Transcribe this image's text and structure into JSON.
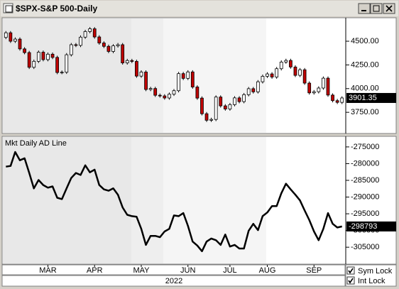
{
  "chart_data": [
    {
      "type": "candlestick",
      "title": "$SPX-S&P 500-Daily",
      "up_color": "#ffffff",
      "down_color": "#c00000",
      "outline_color": "#000000",
      "open": [
        4540,
        4589,
        4500,
        4522,
        4419,
        4380,
        4225,
        4288,
        4384,
        4306,
        4363,
        4329,
        4170,
        4173,
        4357,
        4463,
        4456,
        4543,
        4602,
        4631,
        4545,
        4481,
        4446,
        4392,
        4451,
        4463,
        4271,
        4296,
        4287,
        4132,
        4175,
        3991,
        4001,
        3930,
        3923,
        3901,
        3941,
        3978,
        4158,
        4108,
        4176,
        4017,
        3900,
        3735,
        3666,
        3675,
        3911,
        3818,
        3785,
        3831,
        3902,
        3863,
        3936,
        3999,
        3966,
        4072,
        4130,
        4155,
        4122,
        4210,
        4280,
        4297,
        4228,
        4140,
        4199,
        4058,
        3955,
        3967,
        4006,
        4110,
        3932,
        3873,
        3855
      ],
      "high": [
        4607,
        4607,
        4540,
        4540,
        4437,
        4398,
        4306,
        4402,
        4402,
        4381,
        4381,
        4347,
        4191,
        4375,
        4481,
        4481,
        4561,
        4620,
        4649,
        4649,
        4563,
        4499,
        4464,
        4469,
        4481,
        4481,
        4314,
        4314,
        4305,
        4193,
        4193,
        4019,
        4019,
        3948,
        3941,
        3959,
        3996,
        4176,
        4176,
        4194,
        4194,
        4035,
        3918,
        3753,
        3693,
        3929,
        3929,
        3836,
        3849,
        3920,
        3920,
        3954,
        4017,
        4017,
        4090,
        4148,
        4173,
        4173,
        4228,
        4298,
        4315,
        4315,
        4246,
        4217,
        4217,
        4076,
        3985,
        4024,
        4128,
        4128,
        3950,
        3891,
        3919
      ],
      "low": [
        4522,
        4482,
        4482,
        4401,
        4362,
        4207,
        4207,
        4270,
        4288,
        4288,
        4311,
        4152,
        4152,
        4155,
        4339,
        4438,
        4438,
        4525,
        4584,
        4527,
        4463,
        4428,
        4374,
        4374,
        4433,
        4253,
        4253,
        4269,
        4114,
        4114,
        3973,
        3973,
        3912,
        3905,
        3883,
        3883,
        3923,
        3960,
        4090,
        4090,
        3999,
        3882,
        3717,
        3648,
        3648,
        3657,
        3800,
        3767,
        3767,
        3813,
        3845,
        3845,
        3918,
        3948,
        3948,
        4054,
        4112,
        4104,
        4104,
        4192,
        4262,
        4210,
        4122,
        4122,
        4040,
        3937,
        3937,
        3949,
        3988,
        3914,
        3855,
        3837,
        3837
      ],
      "close": [
        4589,
        4500,
        4522,
        4419,
        4380,
        4225,
        4288,
        4384,
        4306,
        4363,
        4329,
        4170,
        4173,
        4357,
        4463,
        4456,
        4543,
        4602,
        4631,
        4545,
        4481,
        4446,
        4392,
        4451,
        4463,
        4271,
        4296,
        4287,
        4132,
        4175,
        3991,
        4001,
        3930,
        3923,
        3901,
        3941,
        3978,
        4158,
        4108,
        4176,
        4017,
        3900,
        3735,
        3666,
        3675,
        3911,
        3818,
        3785,
        3831,
        3902,
        3863,
        3936,
        3999,
        3966,
        4072,
        4130,
        4155,
        4122,
        4210,
        4280,
        4297,
        4228,
        4140,
        4199,
        4058,
        3955,
        3967,
        4006,
        4110,
        3932,
        3873,
        3855,
        3901.35
      ],
      "ylim": [
        3534,
        4740
      ],
      "yticks": [
        {
          "value": 4500,
          "label": "4500.00"
        },
        {
          "value": 4250,
          "label": "4250.00"
        },
        {
          "value": 4000,
          "label": "4000.00"
        },
        {
          "value": 3750,
          "label": "3750.00"
        }
      ]
    },
    {
      "type": "line",
      "title": "Mkt Daily AD Line",
      "color": "#000000",
      "xlabel": "2022",
      "categories": [
        null,
        null,
        null,
        null,
        null,
        null,
        null,
        null,
        null,
        "MAR",
        null,
        null,
        null,
        null,
        null,
        null,
        null,
        null,
        null,
        "APR",
        null,
        null,
        null,
        null,
        null,
        null,
        null,
        null,
        null,
        "MAY",
        null,
        null,
        null,
        null,
        null,
        null,
        null,
        null,
        null,
        "JUN",
        null,
        null,
        null,
        null,
        null,
        null,
        null,
        null,
        "JUL",
        null,
        null,
        null,
        null,
        null,
        null,
        null,
        "AUG",
        null,
        null,
        null,
        null,
        null,
        null,
        null,
        null,
        null,
        "SEP",
        null,
        null,
        null,
        null,
        null,
        null
      ],
      "values": [
        -280900,
        -280700,
        -276500,
        -279000,
        -278400,
        -282800,
        -287400,
        -284900,
        -286400,
        -287200,
        -286800,
        -290200,
        -290600,
        -287400,
        -284300,
        -282800,
        -283400,
        -280500,
        -282600,
        -281800,
        -286400,
        -287700,
        -288100,
        -287400,
        -289300,
        -293100,
        -295300,
        -295700,
        -295900,
        -299500,
        -304300,
        -301600,
        -301600,
        -302000,
        -300300,
        -299500,
        -295500,
        -295700,
        -294800,
        -298600,
        -303300,
        -304500,
        -306200,
        -303300,
        -302400,
        -302900,
        -304300,
        -301200,
        -304800,
        -304300,
        -305400,
        -305400,
        -300100,
        -298000,
        -299900,
        -295700,
        -294600,
        -292700,
        -292700,
        -288900,
        -286000,
        -287700,
        -289300,
        -291000,
        -294000,
        -296900,
        -300300,
        -302900,
        -299500,
        -294800,
        -298000,
        -299100,
        -298793
      ],
      "ylim": [
        -309850,
        -272050
      ],
      "yticks": [
        -275000,
        -280000,
        -285000,
        -290000,
        -295000,
        -300000,
        -305000
      ]
    }
  ],
  "controls": {
    "sym_lock": {
      "label": "Sym Lock",
      "checked": true
    },
    "int_lock": {
      "label": "Int Lock",
      "checked": true
    }
  }
}
